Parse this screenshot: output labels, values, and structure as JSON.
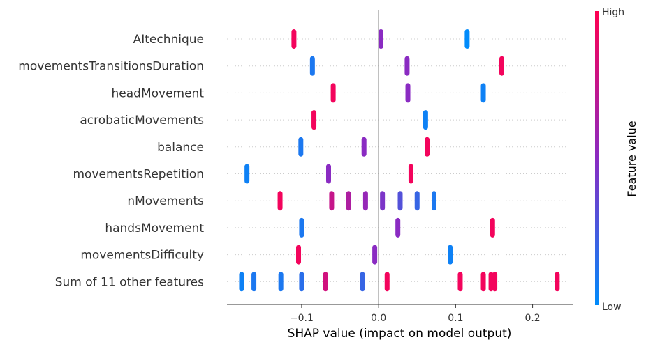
{
  "chart_data": {
    "type": "beeswarm",
    "xlabel": "SHAP value (impact on model output)",
    "xticks": [
      -0.1,
      0.0,
      0.1,
      0.2
    ],
    "xtick_labels": [
      "−0.1",
      "0.0",
      "0.1",
      "0.2"
    ],
    "xlim": [
      -0.197,
      0.253
    ],
    "colorbar": {
      "label": "Feature value",
      "high_label": "High",
      "low_label": "Low",
      "low_color": "#008bfb",
      "high_color": "#ff0051"
    },
    "features": [
      {
        "name": "AItechnique",
        "points": [
          [
            -0.11,
            0.95
          ],
          [
            0.003,
            0.5
          ],
          [
            0.115,
            0.0
          ]
        ]
      },
      {
        "name": "movementsTransitionsDuration",
        "points": [
          [
            -0.086,
            0.1
          ],
          [
            0.037,
            0.5
          ],
          [
            0.16,
            0.95
          ]
        ]
      },
      {
        "name": "headMovement",
        "points": [
          [
            -0.059,
            0.95
          ],
          [
            0.038,
            0.5
          ],
          [
            0.136,
            0.05
          ]
        ]
      },
      {
        "name": "acrobaticMovements",
        "points": [
          [
            -0.084,
            0.95
          ],
          [
            0.061,
            0.05
          ]
        ]
      },
      {
        "name": "balance",
        "points": [
          [
            -0.101,
            0.1
          ],
          [
            -0.019,
            0.5
          ],
          [
            0.063,
            0.95
          ]
        ]
      },
      {
        "name": "movementsRepetition",
        "points": [
          [
            -0.171,
            0.05
          ],
          [
            -0.065,
            0.5
          ],
          [
            0.042,
            0.95
          ]
        ]
      },
      {
        "name": "nMovements",
        "points": [
          [
            -0.128,
            0.95
          ],
          [
            -0.061,
            0.75
          ],
          [
            -0.039,
            0.65
          ],
          [
            -0.017,
            0.55
          ],
          [
            0.005,
            0.45
          ],
          [
            0.028,
            0.3
          ],
          [
            0.05,
            0.2
          ],
          [
            0.072,
            0.1
          ]
        ]
      },
      {
        "name": "handsMovement",
        "points": [
          [
            -0.1,
            0.1
          ],
          [
            0.025,
            0.5
          ],
          [
            0.148,
            0.95
          ]
        ]
      },
      {
        "name": "movementsDifficulty",
        "points": [
          [
            -0.104,
            0.95
          ],
          [
            -0.005,
            0.5
          ],
          [
            0.093,
            0.05
          ]
        ]
      },
      {
        "name": "Sum of 11 other features",
        "points": [
          [
            -0.178,
            0.05
          ],
          [
            -0.162,
            0.1
          ],
          [
            -0.127,
            0.1
          ],
          [
            -0.1,
            0.15
          ],
          [
            -0.069,
            0.8
          ],
          [
            -0.021,
            0.2
          ],
          [
            0.011,
            0.95
          ],
          [
            0.106,
            0.95
          ],
          [
            0.136,
            0.95
          ],
          [
            0.146,
            0.95
          ],
          [
            0.151,
            0.95
          ],
          [
            0.232,
            0.95
          ]
        ]
      }
    ]
  }
}
